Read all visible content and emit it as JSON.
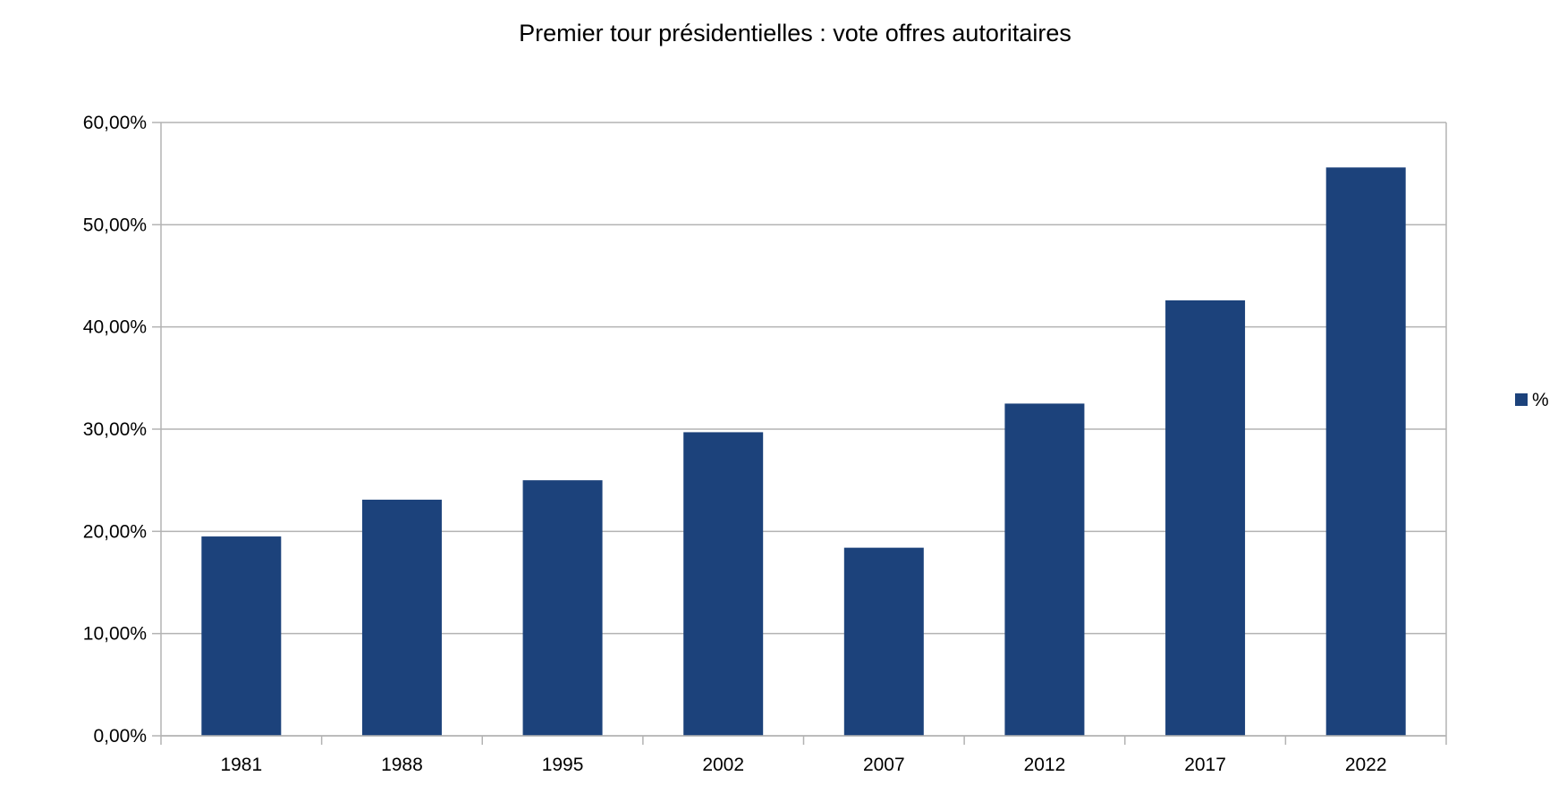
{
  "chart_data": {
    "type": "bar",
    "title": "Premier tour présidentielles : vote offres autoritaires",
    "xlabel": "",
    "ylabel": "",
    "categories": [
      "1981",
      "1988",
      "1995",
      "2002",
      "2007",
      "2012",
      "2017",
      "2022"
    ],
    "series": [
      {
        "name": "%",
        "values": [
          19.5,
          23.1,
          25.0,
          29.7,
          18.4,
          32.5,
          42.6,
          55.6
        ],
        "color": "#1c427b"
      }
    ],
    "ylim": [
      0,
      60
    ],
    "yticks": [
      0,
      10,
      20,
      30,
      40,
      50,
      60
    ],
    "ytick_labels": [
      "0,00%",
      "10,00%",
      "20,00%",
      "30,00%",
      "40,00%",
      "50,00%",
      "60,00%"
    ],
    "grid": true,
    "legend_position": "right"
  }
}
